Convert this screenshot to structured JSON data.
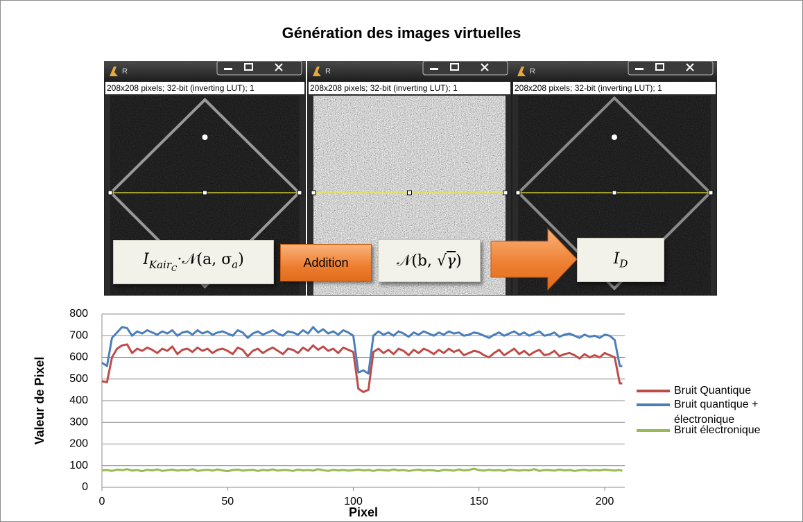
{
  "header": {
    "title": "Génération des images virtuelles"
  },
  "windows": [
    {
      "title": "R",
      "status": "208x208 pixels; 32-bit (inverting LUT); 1"
    },
    {
      "title": "R",
      "status": "208x208 pixels; 32-bit (inverting LUT); 1"
    },
    {
      "title": "R",
      "status": "208x208 pixels; 32-bit (inverting LUT); 1"
    }
  ],
  "formulas": {
    "f1": [
      "I",
      "Kair",
      "C",
      "·𝒩(a, σ",
      "a",
      ")"
    ],
    "operation": "Addition",
    "f2": [
      "𝒩(b, √",
      "γ",
      ")"
    ],
    "f3": [
      "I",
      "D"
    ]
  },
  "chart_data": {
    "type": "line",
    "x_label": "Pixel",
    "y_label": "Valeur de Pixel",
    "xlim": [
      0,
      208
    ],
    "xticks": [
      0,
      50,
      100,
      150,
      200
    ],
    "ylim": [
      0,
      800
    ],
    "yticks": [
      0,
      100,
      200,
      300,
      400,
      500,
      600,
      700,
      800
    ],
    "grid": true,
    "legend": "right",
    "x": [
      0,
      2,
      4,
      6,
      8,
      10,
      12,
      14,
      16,
      18,
      20,
      22,
      24,
      26,
      28,
      30,
      32,
      34,
      36,
      38,
      40,
      42,
      44,
      46,
      48,
      50,
      52,
      54,
      56,
      58,
      60,
      62,
      64,
      66,
      68,
      70,
      72,
      74,
      76,
      78,
      80,
      82,
      84,
      86,
      88,
      90,
      92,
      94,
      96,
      98,
      100,
      102,
      104,
      106,
      108,
      110,
      112,
      114,
      116,
      118,
      120,
      122,
      124,
      126,
      128,
      130,
      132,
      134,
      136,
      138,
      140,
      142,
      144,
      146,
      148,
      150,
      152,
      154,
      156,
      158,
      160,
      162,
      164,
      166,
      168,
      170,
      172,
      174,
      176,
      178,
      180,
      182,
      184,
      186,
      188,
      190,
      192,
      194,
      196,
      198,
      200,
      202,
      204,
      206,
      207
    ],
    "series": [
      {
        "name": "Bruit quantique + électronique",
        "color": "#4a7ebb",
        "values": [
          575,
          560,
          690,
          715,
          740,
          735,
          700,
          720,
          710,
          725,
          715,
          705,
          720,
          710,
          725,
          700,
          715,
          720,
          705,
          725,
          710,
          720,
          705,
          715,
          720,
          710,
          700,
          725,
          715,
          690,
          710,
          720,
          705,
          715,
          725,
          710,
          700,
          720,
          715,
          705,
          725,
          710,
          740,
          715,
          730,
          710,
          720,
          705,
          725,
          715,
          700,
          530,
          540,
          525,
          700,
          720,
          705,
          715,
          700,
          720,
          710,
          695,
          715,
          705,
          720,
          710,
          700,
          715,
          705,
          720,
          710,
          715,
          700,
          705,
          715,
          710,
          700,
          690,
          705,
          715,
          700,
          710,
          720,
          705,
          715,
          700,
          710,
          720,
          700,
          705,
          715,
          695,
          705,
          710,
          700,
          690,
          705,
          695,
          700,
          690,
          705,
          700,
          680,
          560,
          560
        ]
      },
      {
        "name": "Bruit Quantique",
        "color": "#be4b48",
        "values": [
          490,
          485,
          600,
          640,
          655,
          660,
          620,
          640,
          630,
          645,
          635,
          620,
          640,
          630,
          650,
          615,
          635,
          640,
          625,
          645,
          630,
          640,
          620,
          635,
          640,
          630,
          615,
          645,
          635,
          605,
          630,
          640,
          620,
          635,
          645,
          630,
          615,
          640,
          635,
          620,
          645,
          630,
          655,
          635,
          650,
          630,
          640,
          620,
          645,
          635,
          625,
          455,
          440,
          450,
          625,
          640,
          620,
          635,
          615,
          640,
          630,
          610,
          635,
          620,
          640,
          630,
          615,
          635,
          620,
          640,
          625,
          635,
          610,
          620,
          630,
          625,
          610,
          600,
          620,
          635,
          610,
          625,
          640,
          615,
          630,
          610,
          625,
          635,
          610,
          615,
          630,
          605,
          615,
          620,
          610,
          595,
          615,
          600,
          610,
          600,
          620,
          610,
          600,
          480,
          480
        ]
      },
      {
        "name": "Bruit électronique",
        "color": "#98b954",
        "values": [
          78,
          80,
          76,
          82,
          79,
          84,
          77,
          80,
          75,
          81,
          78,
          83,
          76,
          79,
          82,
          77,
          80,
          78,
          84,
          76,
          79,
          81,
          77,
          83,
          78,
          75,
          80,
          82,
          77,
          79,
          81,
          76,
          80,
          78,
          83,
          77,
          80,
          79,
          76,
          82,
          78,
          80,
          77,
          84,
          79,
          76,
          81,
          78,
          80,
          77,
          79,
          82,
          78,
          80,
          76,
          81,
          79,
          77,
          83,
          78,
          80,
          76,
          79,
          82,
          77,
          80,
          78,
          75,
          81,
          79,
          77,
          83,
          78,
          80,
          86,
          79,
          77,
          81,
          78,
          80,
          76,
          82,
          79,
          77,
          80,
          78,
          84,
          76,
          80,
          79,
          77,
          82,
          78,
          80,
          76,
          79,
          81,
          77,
          80,
          78,
          82,
          79,
          77,
          80,
          76
        ]
      }
    ]
  }
}
